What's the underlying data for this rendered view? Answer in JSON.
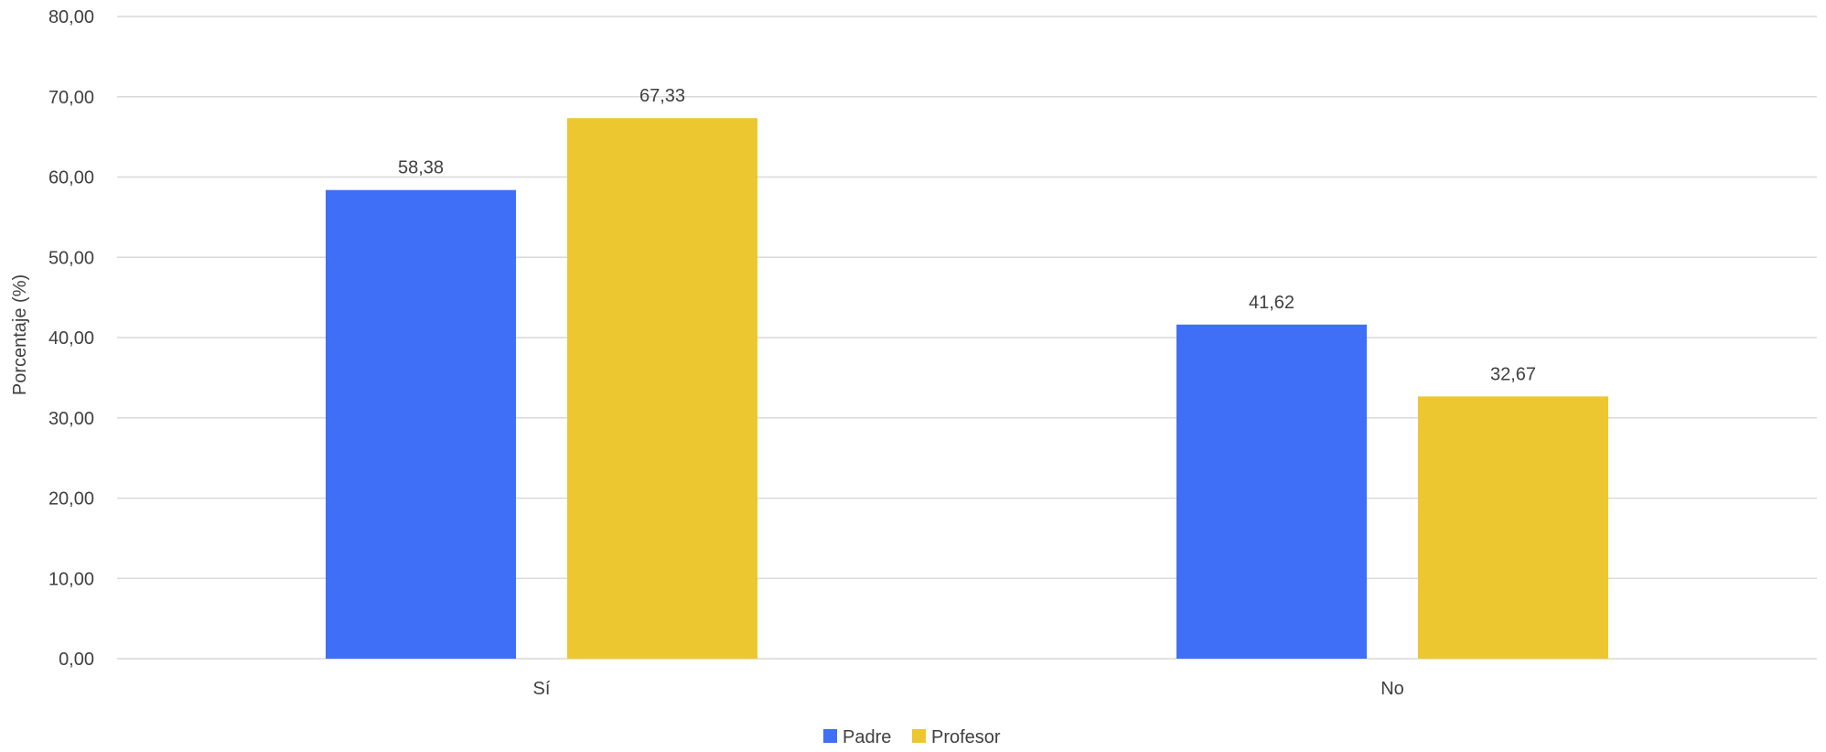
{
  "chart_data": {
    "type": "bar",
    "title": "",
    "xlabel": "",
    "ylabel": "Porcentaje (%)",
    "categories": [
      "Sí",
      "No"
    ],
    "series": [
      {
        "name": "Padre",
        "values": [
          58.38,
          41.62
        ],
        "labels": [
          "58,38",
          "41,62"
        ],
        "color": "#3F6FF7"
      },
      {
        "name": "Profesor",
        "values": [
          67.33,
          32.67
        ],
        "labels": [
          "67,33",
          "32,67"
        ],
        "color": "#EDC72F"
      }
    ],
    "ylim": [
      0,
      80
    ],
    "yticks": [
      0,
      10,
      20,
      30,
      40,
      50,
      60,
      70,
      80
    ],
    "ytick_labels": [
      "0,00",
      "10,00",
      "20,00",
      "30,00",
      "40,00",
      "50,00",
      "60,00",
      "70,00",
      "80,00"
    ],
    "grid": true,
    "gridline_color": "#D9D9D9",
    "legend_position": "bottom-center"
  }
}
